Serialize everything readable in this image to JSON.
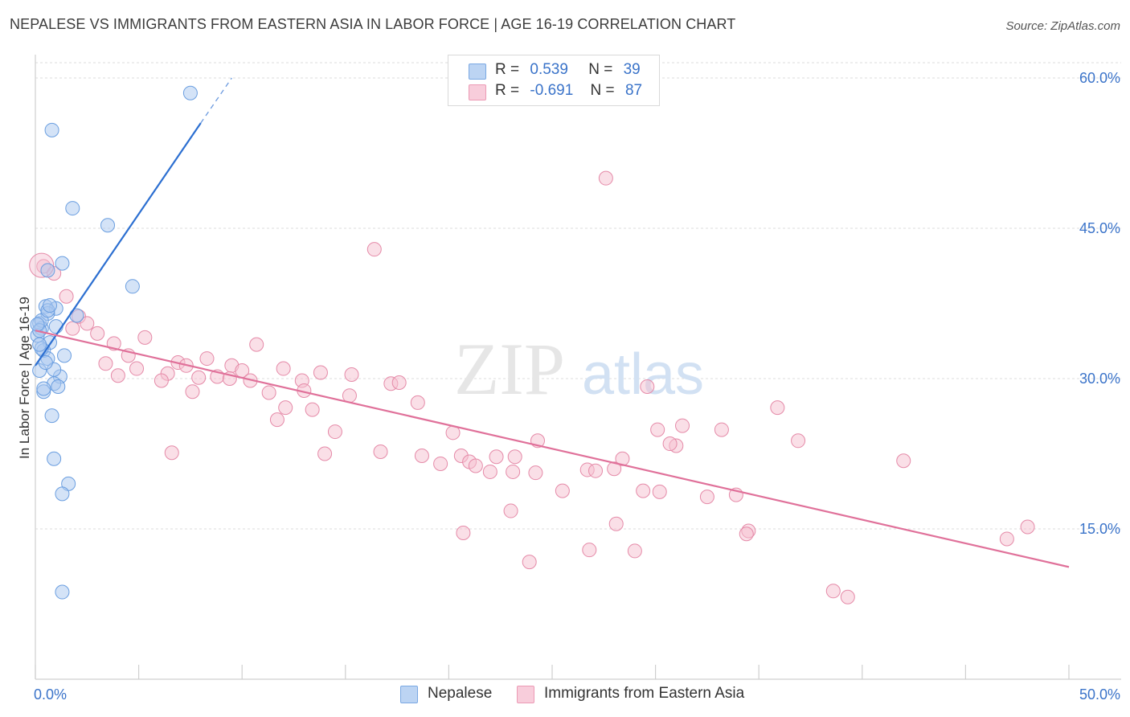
{
  "title": "NEPALESE VS IMMIGRANTS FROM EASTERN ASIA IN LABOR FORCE | AGE 16-19 CORRELATION CHART",
  "source": "Source: ZipAtlas.com",
  "watermark": {
    "zip": "ZIP",
    "atlas": "atlas"
  },
  "legend": {
    "r_label": "R =",
    "n_label": "N =",
    "rows": [
      {
        "r": "0.539",
        "n": "39"
      },
      {
        "r": "-0.691",
        "n": "87"
      }
    ]
  },
  "colors": {
    "blue_fill": "#a9c8f0",
    "blue_stroke": "#6a9ee0",
    "blue_line": "#2c6fd1",
    "pink_fill": "#f5bfd0",
    "pink_stroke": "#e58aa8",
    "pink_line": "#e0719a",
    "tick_text": "#3a73c9",
    "grid": "#dddddd"
  },
  "chart_data": {
    "type": "scatter",
    "title": "NEPALESE VS IMMIGRANTS FROM EASTERN ASIA IN LABOR FORCE | AGE 16-19 CORRELATION CHART",
    "xlabel": "",
    "ylabel": "In Labor Force | Age 16-19",
    "xlim": [
      0,
      50
    ],
    "ylim": [
      0,
      60
    ],
    "x_tick_labels": [
      "0.0%",
      "50.0%"
    ],
    "y_ticks": [
      15,
      30,
      45,
      60
    ],
    "y_tick_labels": [
      "15.0%",
      "30.0%",
      "45.0%",
      "60.0%"
    ],
    "series": [
      {
        "name": "Nepalese",
        "r": 0.539,
        "n": 39,
        "trend": {
          "x": [
            0.0,
            8.0
          ],
          "y": [
            31.3,
            55.5
          ],
          "dashed_to": [
            9.5,
            60.0
          ]
        },
        "points": [
          [
            7.5,
            58.5
          ],
          [
            0.8,
            54.8
          ],
          [
            1.8,
            47.0
          ],
          [
            3.5,
            45.3
          ],
          [
            1.3,
            41.5
          ],
          [
            0.6,
            40.8
          ],
          [
            4.7,
            39.2
          ],
          [
            0.5,
            37.2
          ],
          [
            1.0,
            37.0
          ],
          [
            0.6,
            36.5
          ],
          [
            2.0,
            36.3
          ],
          [
            0.2,
            35.5
          ],
          [
            0.3,
            35.0
          ],
          [
            0.1,
            34.3
          ],
          [
            0.7,
            33.6
          ],
          [
            0.4,
            32.8
          ],
          [
            1.4,
            32.3
          ],
          [
            0.6,
            32.0
          ],
          [
            0.2,
            30.8
          ],
          [
            1.2,
            30.2
          ],
          [
            0.9,
            29.5
          ],
          [
            0.4,
            28.7
          ],
          [
            1.1,
            29.2
          ],
          [
            0.8,
            26.3
          ],
          [
            0.9,
            22.0
          ],
          [
            1.6,
            19.5
          ],
          [
            1.3,
            18.5
          ],
          [
            1.3,
            8.7
          ],
          [
            0.3,
            35.8
          ],
          [
            0.6,
            36.8
          ],
          [
            1.0,
            35.2
          ],
          [
            0.7,
            37.3
          ],
          [
            0.2,
            34.8
          ],
          [
            0.9,
            30.9
          ],
          [
            0.5,
            31.6
          ],
          [
            0.1,
            35.4
          ],
          [
            0.3,
            33.0
          ],
          [
            0.4,
            29.0
          ],
          [
            0.2,
            33.4
          ]
        ]
      },
      {
        "name": "Immigrants from Eastern Asia",
        "r": -0.691,
        "n": 87,
        "trend": {
          "x": [
            0.0,
            50.0
          ],
          "y": [
            34.8,
            11.2
          ]
        },
        "points": [
          [
            0.4,
            41.2
          ],
          [
            0.9,
            40.5
          ],
          [
            1.5,
            38.2
          ],
          [
            2.1,
            36.2
          ],
          [
            2.5,
            35.5
          ],
          [
            1.8,
            35.0
          ],
          [
            3.0,
            34.5
          ],
          [
            5.3,
            34.1
          ],
          [
            3.8,
            33.5
          ],
          [
            10.7,
            33.4
          ],
          [
            4.5,
            32.3
          ],
          [
            8.3,
            32.0
          ],
          [
            3.4,
            31.5
          ],
          [
            6.9,
            31.6
          ],
          [
            7.3,
            31.3
          ],
          [
            9.5,
            31.3
          ],
          [
            4.9,
            31.0
          ],
          [
            12.0,
            31.0
          ],
          [
            6.4,
            30.5
          ],
          [
            13.8,
            30.6
          ],
          [
            10.0,
            30.8
          ],
          [
            15.3,
            30.4
          ],
          [
            4.0,
            30.3
          ],
          [
            7.9,
            30.1
          ],
          [
            8.8,
            30.2
          ],
          [
            9.4,
            30.0
          ],
          [
            6.1,
            29.8
          ],
          [
            10.4,
            29.8
          ],
          [
            12.9,
            29.8
          ],
          [
            17.2,
            29.5
          ],
          [
            17.6,
            29.6
          ],
          [
            11.3,
            28.6
          ],
          [
            13.0,
            28.8
          ],
          [
            7.6,
            28.7
          ],
          [
            15.2,
            28.3
          ],
          [
            18.5,
            27.6
          ],
          [
            12.1,
            27.1
          ],
          [
            13.4,
            26.9
          ],
          [
            35.9,
            27.1
          ],
          [
            11.7,
            25.9
          ],
          [
            29.6,
            29.2
          ],
          [
            14.5,
            24.7
          ],
          [
            31.3,
            25.3
          ],
          [
            33.2,
            24.9
          ],
          [
            30.1,
            24.9
          ],
          [
            20.2,
            24.6
          ],
          [
            24.3,
            23.8
          ],
          [
            16.7,
            22.7
          ],
          [
            18.7,
            22.3
          ],
          [
            20.6,
            22.3
          ],
          [
            22.3,
            22.2
          ],
          [
            23.2,
            22.2
          ],
          [
            28.4,
            22.0
          ],
          [
            36.9,
            23.8
          ],
          [
            42.0,
            21.8
          ],
          [
            6.6,
            22.6
          ],
          [
            14.0,
            22.5
          ],
          [
            21.0,
            21.7
          ],
          [
            21.3,
            21.3
          ],
          [
            22.0,
            20.7
          ],
          [
            23.1,
            20.7
          ],
          [
            24.2,
            20.6
          ],
          [
            19.6,
            21.5
          ],
          [
            26.7,
            20.9
          ],
          [
            27.1,
            20.8
          ],
          [
            29.4,
            18.8
          ],
          [
            30.2,
            18.7
          ],
          [
            25.5,
            18.8
          ],
          [
            32.5,
            18.2
          ],
          [
            28.1,
            15.5
          ],
          [
            34.5,
            14.8
          ],
          [
            23.0,
            16.8
          ],
          [
            20.7,
            14.6
          ],
          [
            31.0,
            23.3
          ],
          [
            33.9,
            18.4
          ],
          [
            28.0,
            21.0
          ],
          [
            30.7,
            23.5
          ],
          [
            48.0,
            15.2
          ],
          [
            47.0,
            14.0
          ],
          [
            38.6,
            8.8
          ],
          [
            39.3,
            8.2
          ],
          [
            26.8,
            12.9
          ],
          [
            23.9,
            11.7
          ],
          [
            16.4,
            42.9
          ],
          [
            27.6,
            50.0
          ],
          [
            34.4,
            14.5
          ],
          [
            29.0,
            12.8
          ]
        ]
      }
    ]
  }
}
